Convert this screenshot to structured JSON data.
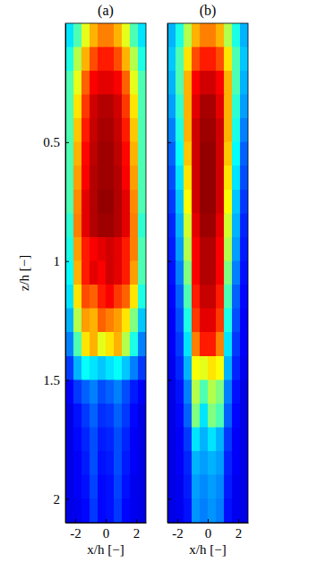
{
  "chart_data": [
    {
      "type": "heatmap",
      "title": "(a)",
      "xlabel": "x/h [−]",
      "ylabel": "z/h [−]",
      "xlim": [
        -2.65,
        2.65
      ],
      "ylim": [
        0,
        2.1
      ],
      "xticks": [
        -2,
        0,
        2
      ],
      "yticks": [
        0.5,
        1,
        1.5,
        2
      ],
      "zlim": [
        0,
        1
      ],
      "x_bins": [
        -2.65,
        -2.12,
        -1.59,
        -1.06,
        -0.53,
        0,
        0.53,
        1.06,
        1.59,
        2.12,
        2.65
      ],
      "y_bins": [
        0,
        0.1,
        0.2,
        0.3,
        0.4,
        0.5,
        0.6,
        0.7,
        0.8,
        0.9,
        1.0,
        1.1,
        1.2,
        1.3,
        1.4,
        1.5,
        1.6,
        1.7,
        1.8,
        1.9,
        2.0,
        2.1
      ],
      "cells": [
        [
          0.35,
          0.45,
          0.6,
          0.7,
          0.75,
          0.75,
          0.7,
          0.6,
          0.45,
          0.35
        ],
        [
          0.4,
          0.55,
          0.7,
          0.8,
          0.85,
          0.85,
          0.8,
          0.7,
          0.55,
          0.4
        ],
        [
          0.45,
          0.6,
          0.78,
          0.88,
          0.9,
          0.9,
          0.88,
          0.78,
          0.6,
          0.45
        ],
        [
          0.45,
          0.65,
          0.82,
          0.92,
          0.95,
          0.95,
          0.92,
          0.82,
          0.65,
          0.45
        ],
        [
          0.45,
          0.68,
          0.85,
          0.93,
          0.96,
          0.96,
          0.93,
          0.85,
          0.68,
          0.45
        ],
        [
          0.45,
          0.7,
          0.87,
          0.94,
          0.97,
          0.97,
          0.94,
          0.87,
          0.7,
          0.45
        ],
        [
          0.45,
          0.72,
          0.88,
          0.95,
          0.97,
          0.97,
          0.95,
          0.88,
          0.72,
          0.45
        ],
        [
          0.45,
          0.74,
          0.9,
          0.95,
          0.98,
          0.98,
          0.95,
          0.9,
          0.74,
          0.45
        ],
        [
          0.42,
          0.75,
          0.9,
          0.95,
          0.97,
          0.97,
          0.95,
          0.9,
          0.75,
          0.42
        ],
        [
          0.4,
          0.72,
          0.85,
          0.88,
          0.9,
          0.92,
          0.9,
          0.85,
          0.75,
          0.45
        ],
        [
          0.38,
          0.7,
          0.85,
          0.9,
          0.88,
          0.92,
          0.9,
          0.85,
          0.72,
          0.45
        ],
        [
          0.35,
          0.65,
          0.8,
          0.78,
          0.85,
          0.88,
          0.82,
          0.78,
          0.65,
          0.4
        ],
        [
          0.3,
          0.55,
          0.72,
          0.7,
          0.78,
          0.75,
          0.72,
          0.65,
          0.5,
          0.32
        ],
        [
          0.25,
          0.45,
          0.65,
          0.7,
          0.6,
          0.65,
          0.7,
          0.55,
          0.4,
          0.25
        ],
        [
          0.18,
          0.3,
          0.38,
          0.35,
          0.32,
          0.35,
          0.38,
          0.32,
          0.25,
          0.18
        ],
        [
          0.12,
          0.18,
          0.22,
          0.25,
          0.2,
          0.22,
          0.25,
          0.2,
          0.15,
          0.12
        ],
        [
          0.1,
          0.14,
          0.18,
          0.22,
          0.17,
          0.18,
          0.22,
          0.18,
          0.13,
          0.1
        ],
        [
          0.1,
          0.13,
          0.16,
          0.2,
          0.15,
          0.16,
          0.2,
          0.16,
          0.12,
          0.1
        ],
        [
          0.1,
          0.12,
          0.15,
          0.2,
          0.14,
          0.15,
          0.2,
          0.15,
          0.12,
          0.1
        ],
        [
          0.1,
          0.12,
          0.14,
          0.19,
          0.13,
          0.14,
          0.19,
          0.14,
          0.11,
          0.1
        ],
        [
          0.1,
          0.11,
          0.13,
          0.18,
          0.13,
          0.14,
          0.18,
          0.13,
          0.11,
          0.1
        ]
      ]
    },
    {
      "type": "heatmap",
      "title": "(b)",
      "xlabel": "x/h [−]",
      "tick_labels": "x",
      "xlim": [
        -2.65,
        2.65
      ],
      "ylim": [
        0,
        2.1
      ],
      "xticks": [
        -2,
        0,
        2
      ],
      "yticks": [
        0.5,
        1,
        1.5,
        2
      ],
      "zlim": [
        0,
        1
      ],
      "x_bins": [
        -2.65,
        -2.12,
        -1.59,
        -1.06,
        -0.53,
        0,
        0.53,
        1.06,
        1.59,
        2.12,
        2.65
      ],
      "y_bins": [
        0,
        0.1,
        0.2,
        0.3,
        0.4,
        0.5,
        0.6,
        0.7,
        0.8,
        0.9,
        1.0,
        1.1,
        1.2,
        1.3,
        1.4,
        1.5,
        1.6,
        1.7,
        1.8,
        1.9,
        2.0,
        2.1
      ],
      "cells": [
        [
          0.3,
          0.4,
          0.55,
          0.7,
          0.75,
          0.75,
          0.7,
          0.55,
          0.4,
          0.3
        ],
        [
          0.32,
          0.45,
          0.65,
          0.8,
          0.85,
          0.85,
          0.8,
          0.65,
          0.45,
          0.32
        ],
        [
          0.3,
          0.45,
          0.7,
          0.88,
          0.92,
          0.92,
          0.88,
          0.7,
          0.45,
          0.3
        ],
        [
          0.28,
          0.42,
          0.7,
          0.9,
          0.96,
          0.96,
          0.9,
          0.7,
          0.42,
          0.28
        ],
        [
          0.25,
          0.4,
          0.7,
          0.92,
          0.97,
          0.97,
          0.92,
          0.7,
          0.4,
          0.25
        ],
        [
          0.22,
          0.38,
          0.68,
          0.92,
          0.98,
          0.98,
          0.92,
          0.68,
          0.38,
          0.22
        ],
        [
          0.2,
          0.35,
          0.65,
          0.92,
          0.98,
          0.98,
          0.92,
          0.65,
          0.35,
          0.2
        ],
        [
          0.18,
          0.32,
          0.62,
          0.92,
          0.98,
          0.98,
          0.92,
          0.62,
          0.32,
          0.18
        ],
        [
          0.16,
          0.3,
          0.58,
          0.9,
          0.97,
          0.97,
          0.9,
          0.58,
          0.3,
          0.16
        ],
        [
          0.15,
          0.28,
          0.55,
          0.88,
          0.95,
          0.95,
          0.88,
          0.55,
          0.28,
          0.15
        ],
        [
          0.14,
          0.25,
          0.5,
          0.88,
          0.95,
          0.95,
          0.88,
          0.5,
          0.25,
          0.14
        ],
        [
          0.13,
          0.22,
          0.45,
          0.85,
          0.93,
          0.93,
          0.85,
          0.45,
          0.22,
          0.13
        ],
        [
          0.12,
          0.2,
          0.4,
          0.82,
          0.9,
          0.9,
          0.82,
          0.4,
          0.2,
          0.12
        ],
        [
          0.12,
          0.18,
          0.35,
          0.75,
          0.85,
          0.85,
          0.75,
          0.35,
          0.18,
          0.12
        ],
        [
          0.11,
          0.16,
          0.3,
          0.62,
          0.6,
          0.65,
          0.62,
          0.3,
          0.16,
          0.11
        ],
        [
          0.1,
          0.14,
          0.25,
          0.55,
          0.45,
          0.55,
          0.5,
          0.25,
          0.14,
          0.1
        ],
        [
          0.1,
          0.13,
          0.22,
          0.5,
          0.35,
          0.5,
          0.45,
          0.22,
          0.13,
          0.1
        ],
        [
          0.1,
          0.12,
          0.18,
          0.35,
          0.3,
          0.35,
          0.3,
          0.18,
          0.12,
          0.1
        ],
        [
          0.1,
          0.12,
          0.16,
          0.3,
          0.28,
          0.3,
          0.28,
          0.16,
          0.12,
          0.1
        ],
        [
          0.1,
          0.11,
          0.15,
          0.28,
          0.26,
          0.28,
          0.26,
          0.15,
          0.11,
          0.1
        ],
        [
          0.1,
          0.11,
          0.14,
          0.27,
          0.25,
          0.27,
          0.25,
          0.14,
          0.11,
          0.1
        ]
      ]
    }
  ]
}
